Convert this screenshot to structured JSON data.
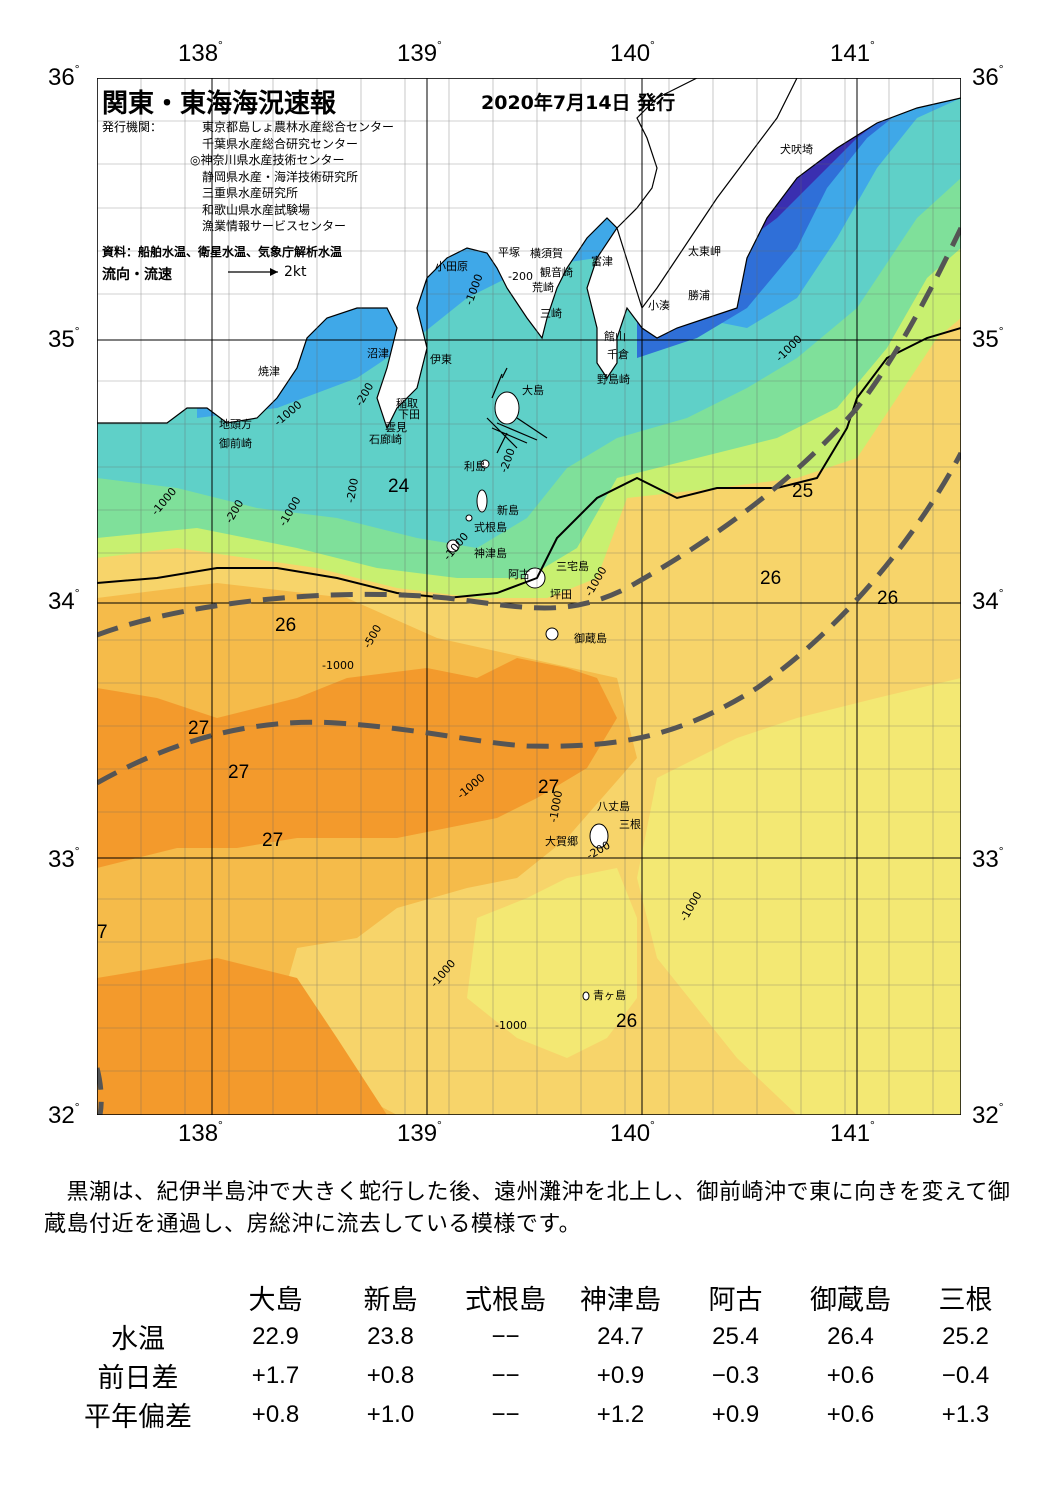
{
  "header": {
    "title": "関東・東海海況速報",
    "issue_date": "2020年7月14日 発行",
    "publisher_label": "発行機関：",
    "publishers": [
      "東京都島しょ農林水産総合センター",
      "千葉県水産総合研究センター",
      "◎神奈川県水産技術センター",
      "静岡県水産・海洋技術研究所",
      "三重県水産研究所",
      "和歌山県水産試験場",
      "漁業情報サービスセンター"
    ],
    "source": "資料：船舶水温、衛星水温、気象庁解析水温",
    "flow_label": "流向・流速",
    "flow_scale": "2kt"
  },
  "axes": {
    "lon_top": [
      "138",
      "139",
      "140",
      "141"
    ],
    "lon_bottom": [
      "138",
      "139",
      "140",
      "141"
    ],
    "lat_left": [
      "36",
      "35",
      "34",
      "33",
      "32"
    ],
    "lat_right": [
      "36",
      "35",
      "34",
      "33",
      "32"
    ],
    "degree_symbol": "°"
  },
  "map": {
    "place_names": [
      "犬吠埼",
      "太東岬",
      "勝浦",
      "小湊",
      "富津",
      "館山",
      "千倉",
      "野島崎",
      "横須賀",
      "観音崎",
      "荒崎",
      "三崎",
      "平塚",
      "小田原",
      "沼津",
      "伊東",
      "稲取",
      "下田",
      "雲見",
      "石廊崎",
      "焼津",
      "地頭方",
      "御前崎",
      "大島",
      "利島",
      "新島",
      "式根島",
      "神津島",
      "三宅島",
      "阿古",
      "坪田",
      "御蔵島",
      "八丈島",
      "三根",
      "大賀郷",
      "青ヶ島"
    ],
    "isotherm_labels": [
      "24",
      "25",
      "26",
      "26",
      "26",
      "26",
      "27",
      "27",
      "27",
      "27",
      "26",
      "7"
    ],
    "depth_labels": [
      "-1000",
      "-200",
      "-200",
      "-200",
      "-1000",
      "-200",
      "-1000",
      "-200",
      "-1000",
      "-1000",
      "-1000",
      "-500",
      "-1000",
      "-1000",
      "-1000",
      "-200",
      "-1000",
      "-1000",
      "-1000",
      "-1000"
    ],
    "colors": {
      "temp_22": "#3a2fb0",
      "temp_23": "#2f6fd8",
      "temp_23_5": "#3fa8e8",
      "temp_24": "#5fd0c8",
      "temp_24_5": "#7fe09a",
      "temp_25": "#c8f070",
      "temp_25_5": "#f3e873",
      "temp_26": "#f7d46a",
      "temp_26_5": "#f5bb4a",
      "temp_27": "#f39a2c",
      "land": "#ffffff",
      "kuroshio_path": "#555555"
    }
  },
  "summary": "　黒潮は、紀伊半島沖で大きく蛇行した後、遠州灘沖を北上し、御前崎沖で東に向きを変えて御蔵島付近を通過し、房総沖に流去している模様です。",
  "table": {
    "stations": [
      "大島",
      "新島",
      "式根島",
      "神津島",
      "阿古",
      "御蔵島",
      "三根"
    ],
    "rows": [
      {
        "label": "水温",
        "values": [
          "22.9",
          "23.8",
          "−−",
          "24.7",
          "25.4",
          "26.4",
          "25.2"
        ]
      },
      {
        "label": "前日差",
        "values": [
          "+1.7",
          "+0.8",
          "−−",
          "+0.9",
          "−0.3",
          "+0.6",
          "−0.4"
        ]
      },
      {
        "label": "平年偏差",
        "values": [
          "+0.8",
          "+1.0",
          "−−",
          "+1.2",
          "+0.9",
          "+0.6",
          "+1.3"
        ]
      }
    ]
  }
}
